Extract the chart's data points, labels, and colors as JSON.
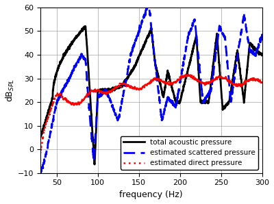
{
  "title": "",
  "xlabel": "frequency (Hz)",
  "ylabel": "dB$_{SPL}$",
  "xlim": [
    30,
    300
  ],
  "ylim": [
    -10,
    60
  ],
  "yticks": [
    -10,
    0,
    10,
    20,
    30,
    40,
    50,
    60
  ],
  "xticks": [
    50,
    100,
    150,
    200,
    250,
    300
  ],
  "legend": [
    {
      "label": "total acoustic pressure",
      "color": "#000000",
      "linestyle": "solid",
      "linewidth": 2.0
    },
    {
      "label": "estimated scattered pressure",
      "color": "#0000ff",
      "linestyle": "dashed",
      "linewidth": 2.0
    },
    {
      "label": "estimated direct pressure",
      "color": "#ff0000",
      "linestyle": "dotted",
      "linewidth": 1.8
    }
  ],
  "figsize": [
    4.0,
    2.98
  ],
  "dpi": 100
}
